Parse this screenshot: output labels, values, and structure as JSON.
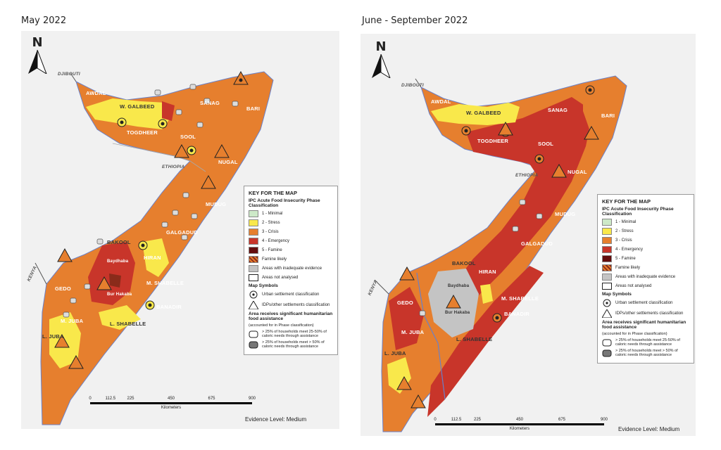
{
  "panels": [
    {
      "title": "May 2022",
      "region_labels": [
        "AWDAL",
        "W. GALBEED",
        "SANAG",
        "BARI",
        "TOGDHEER",
        "SOOL",
        "NUGAL",
        "MUDUG",
        "GALGADUD",
        "BAKOOL",
        "HIRAN",
        "GEDO",
        "M. SHABELLE",
        "BANADIR",
        "M. JUBA",
        "L. SHABELLE",
        "L. JUBA",
        "Baydhaba",
        "Bur Hakaba"
      ],
      "country_labels": [
        "DJIBOUTI",
        "ETHIOPIA",
        "KENYA"
      ],
      "legend": {
        "title": "KEY FOR THE MAP",
        "subtitle": "IPC Acute Food Insecurity Phase Classification",
        "phases": [
          {
            "label": "1 - Minimal",
            "color": "#cde9c8"
          },
          {
            "label": "2 - Stress",
            "color": "#f9e84b"
          },
          {
            "label": "3 - Crisis",
            "color": "#e67f2e"
          },
          {
            "label": "4 - Emergency",
            "color": "#c8352a"
          },
          {
            "label": "5 - Famine",
            "color": "#640d0d"
          },
          {
            "label": "Famine likely",
            "color": "#8a2b1a"
          },
          {
            "label": "Areas with inadequate evidence",
            "color": "#c4c4c4"
          },
          {
            "label": "Areas not analysed",
            "color": "#ffffff"
          }
        ],
        "symbols_title": "Map Symbols",
        "urban_label": "Urban settlement classification",
        "idp_label": "IDPs/other settlements classification",
        "assistance_title": "Area receives significant humanitarian food assistance",
        "assistance_note": "(accounted for in Phase classification)",
        "assist_a": "> 25% of households meet 25-50% of caloric needs through assistance",
        "assist_b": "> 25% of households meet > 50% of caloric needs through assistance"
      },
      "scale": {
        "ticks": [
          "0",
          "112.5",
          "225",
          "450",
          "675",
          "900"
        ],
        "unit": "Kilometers"
      },
      "evidence": "Evidence Level: Medium",
      "north": "N"
    },
    {
      "title": "June - September 2022",
      "region_labels": [
        "AWDAL",
        "W. GALBEED",
        "SANAG",
        "BARI",
        "TOGDHEER",
        "SOOL",
        "NUGAL",
        "MUDUG",
        "GALGADUD",
        "BAKOOL",
        "HIRAN",
        "GEDO",
        "M. SHABELLE",
        "BANADIR",
        "M. JUBA",
        "L. SHABELLE",
        "L. JUBA",
        "Baydhaba",
        "Bur Hakaba"
      ],
      "country_labels": [
        "DJIBOUTI",
        "ETHIOPIA",
        "KENYA"
      ],
      "legend": {
        "title": "KEY FOR THE MAP",
        "subtitle": "IPC Acute Food Insecurity Phase Classification",
        "phases": [
          {
            "label": "1 - Minimal",
            "color": "#cde9c8"
          },
          {
            "label": "2 - Stress",
            "color": "#f9e84b"
          },
          {
            "label": "3 - Crisis",
            "color": "#e67f2e"
          },
          {
            "label": "4 - Emergency",
            "color": "#c8352a"
          },
          {
            "label": "5 - Famine",
            "color": "#640d0d"
          },
          {
            "label": "Famine likely",
            "color": "#8a2b1a"
          },
          {
            "label": "Areas with inadequate evidence",
            "color": "#c4c4c4"
          },
          {
            "label": "Areas not analysed",
            "color": "#ffffff"
          }
        ],
        "symbols_title": "Map Symbols",
        "urban_label": "Urban settlement classification",
        "idp_label": "IDPs/other settlements classification",
        "assistance_title": "Area receives significant humanitarian food assistance",
        "assistance_note": "(accounted for in Phase classification)",
        "assist_a": "> 25% of households meet 25-50% of caloric needs through assistance",
        "assist_b": "> 25% of households meet > 50% of caloric needs through assistance"
      },
      "scale": {
        "ticks": [
          "0",
          "112.5",
          "225",
          "450",
          "675",
          "900"
        ],
        "unit": "Kilometers"
      },
      "evidence": "Evidence Level: Medium",
      "north": "N"
    }
  ]
}
